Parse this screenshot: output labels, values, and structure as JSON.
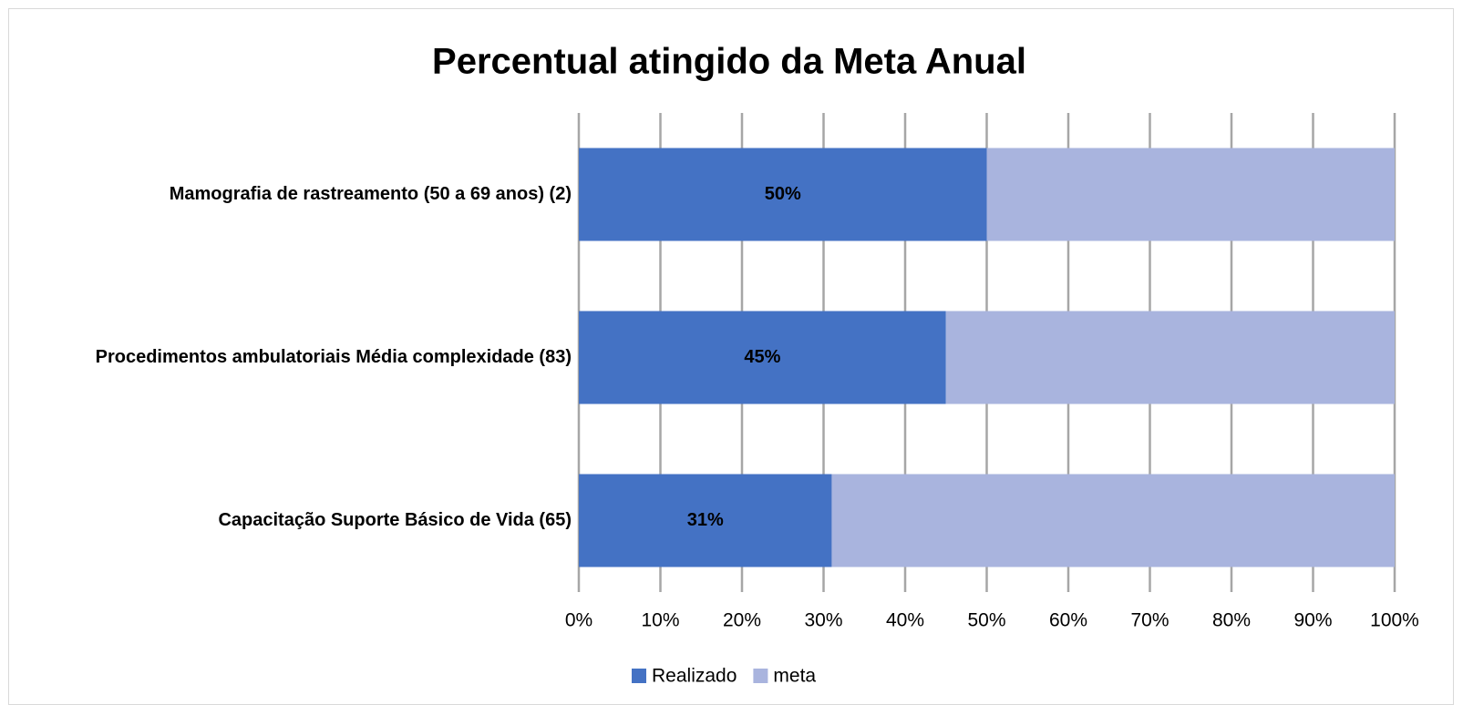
{
  "chart_data": {
    "type": "bar",
    "orientation": "horizontal",
    "stacked": true,
    "title": "Percentual atingido da Meta Anual",
    "categories": [
      "Mamografia de rastreamento (50 a 69 anos)  (2)",
      "Procedimentos ambulatoriais Média complexidade (83)",
      "Capacitação Suporte Básico de Vida (65)"
    ],
    "series": [
      {
        "name": "Realizado",
        "color": "#4472c4",
        "values": [
          50,
          45,
          31
        ],
        "value_labels": [
          "50%",
          "45%",
          "31%"
        ]
      },
      {
        "name": "meta",
        "color": "#a9b4de",
        "values": [
          50,
          55,
          69
        ]
      }
    ],
    "xlim": [
      0,
      100
    ],
    "xticks": [
      {
        "value": 0,
        "label": "0%"
      },
      {
        "value": 10,
        "label": "10%"
      },
      {
        "value": 20,
        "label": "20%"
      },
      {
        "value": 30,
        "label": "30%"
      },
      {
        "value": 40,
        "label": "40%"
      },
      {
        "value": 50,
        "label": "50%"
      },
      {
        "value": 60,
        "label": "60%"
      },
      {
        "value": 70,
        "label": "70%"
      },
      {
        "value": 80,
        "label": "80%"
      },
      {
        "value": 90,
        "label": "90%"
      },
      {
        "value": 100,
        "label": "100%"
      }
    ],
    "grid": true,
    "legend": "bottom"
  }
}
